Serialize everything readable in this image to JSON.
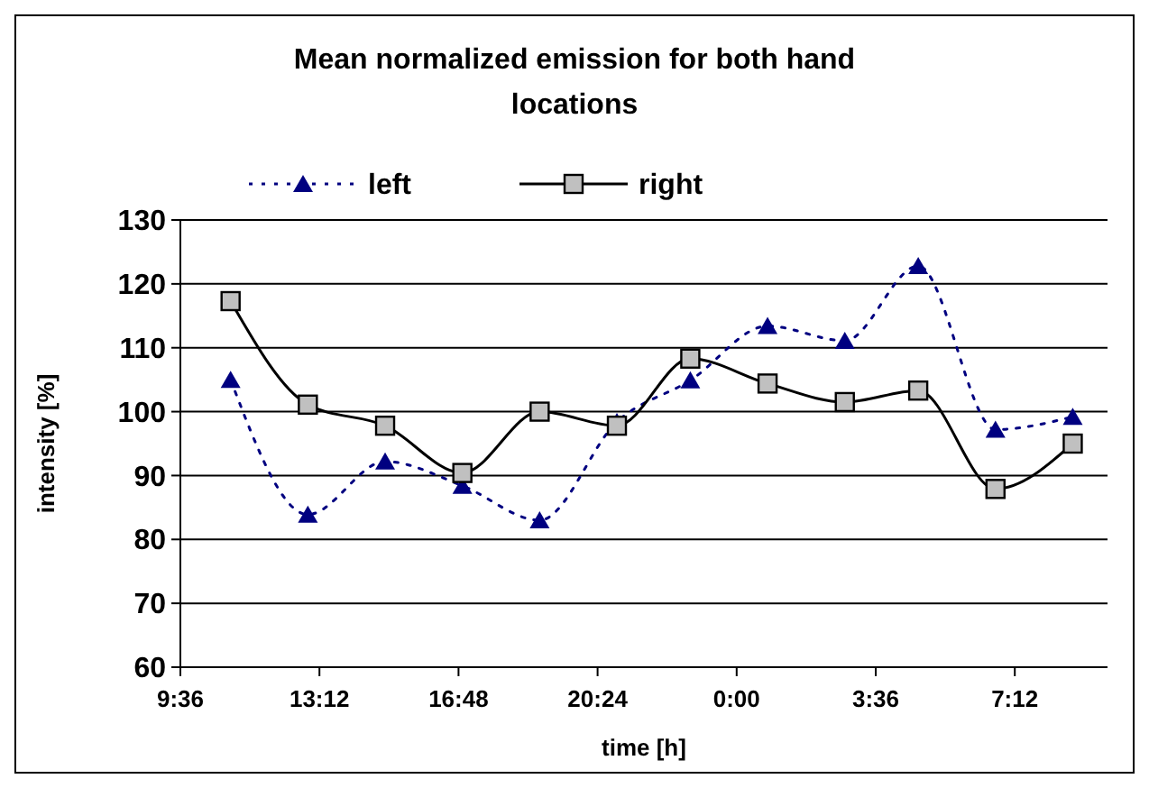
{
  "chart_data": {
    "type": "line",
    "title": "Mean normalized emission for both hand locations",
    "xlabel": "time [h]",
    "ylabel": "intensity [%]",
    "x": [
      "2000-01-01T10:54",
      "2000-01-01T12:54",
      "2000-01-01T14:54",
      "2000-01-01T16:54",
      "2000-01-01T18:54",
      "2000-01-01T20:54",
      "2000-01-01T22:48",
      "2000-01-02T00:48",
      "2000-01-02T02:48",
      "2000-01-02T04:42",
      "2000-01-02T06:42",
      "2000-01-02T08:42"
    ],
    "series": [
      {
        "name": "left",
        "color": "#000080",
        "marker": "triangle",
        "line_style": "dotted",
        "values": [
          105.0,
          83.9,
          92.2,
          88.4,
          83.0,
          98.4,
          104.9,
          113.4,
          111.1,
          122.8,
          97.2,
          99.2
        ]
      },
      {
        "name": "right",
        "color": "#000000",
        "marker": "square",
        "line_style": "solid",
        "values": [
          117.3,
          101.1,
          97.8,
          90.4,
          100.0,
          97.8,
          108.3,
          104.4,
          101.5,
          103.3,
          87.9,
          95.0
        ]
      }
    ],
    "xlim": [
      "2000-01-01T09:36",
      "2000-01-02T09:36"
    ],
    "xticks": [
      {
        "value": "2000-01-01T09:36",
        "label": "9:36"
      },
      {
        "value": "2000-01-01T13:12",
        "label": "13:12"
      },
      {
        "value": "2000-01-01T16:48",
        "label": "16:48"
      },
      {
        "value": "2000-01-01T20:24",
        "label": "20:24"
      },
      {
        "value": "2000-01-02T00:00",
        "label": "0:00"
      },
      {
        "value": "2000-01-02T03:36",
        "label": "3:36"
      },
      {
        "value": "2000-01-02T07:12",
        "label": "7:12"
      }
    ],
    "ylim": [
      60,
      130
    ],
    "yticks": [
      60,
      70,
      80,
      90,
      100,
      110,
      120,
      130
    ],
    "grid": "y",
    "legend": "top"
  }
}
